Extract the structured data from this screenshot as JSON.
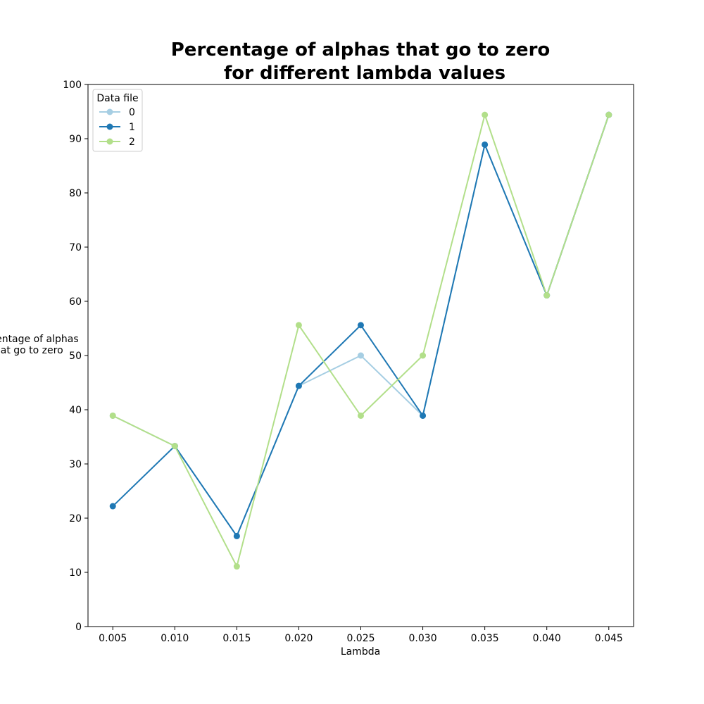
{
  "chart_data": {
    "type": "line",
    "title_lines": [
      "Percentage of alphas that go to zero",
      "for different lambda values"
    ],
    "xlabel": "Lambda",
    "ylabel_lines": [
      "Percentage of alphas",
      "that go to zero"
    ],
    "x": [
      0.005,
      0.01,
      0.015,
      0.02,
      0.025,
      0.03,
      0.035,
      0.04,
      0.045
    ],
    "x_tick_labels": [
      "0.005",
      "0.010",
      "0.015",
      "0.020",
      "0.025",
      "0.030",
      "0.035",
      "0.040",
      "0.045"
    ],
    "xlim": [
      0.003,
      0.047
    ],
    "ylim": [
      0,
      100
    ],
    "y_ticks": [
      0,
      10,
      20,
      30,
      40,
      50,
      60,
      70,
      80,
      90,
      100
    ],
    "grid": false,
    "legend": {
      "title": "Data file",
      "placement": "top-left"
    },
    "series": [
      {
        "name": "0",
        "color": "#a6cee3",
        "values": [
          38.9,
          33.3,
          16.7,
          44.4,
          50.0,
          38.9,
          88.9,
          61.1,
          94.4
        ]
      },
      {
        "name": "1",
        "color": "#1f78b4",
        "values": [
          22.2,
          33.3,
          16.7,
          44.4,
          55.6,
          38.9,
          88.9,
          61.1,
          94.4
        ]
      },
      {
        "name": "2",
        "color": "#b2df8a",
        "values": [
          38.9,
          33.3,
          11.1,
          55.6,
          38.9,
          50.0,
          94.4,
          61.1,
          94.4
        ]
      }
    ]
  }
}
